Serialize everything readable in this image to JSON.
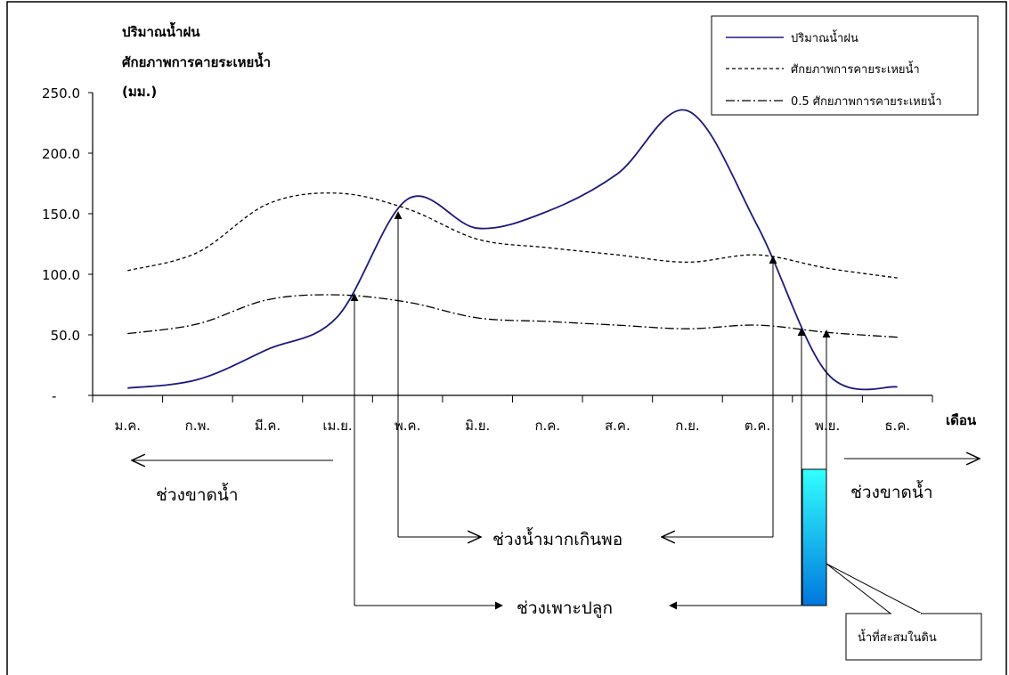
{
  "chart_data": {
    "type": "line",
    "ylabel_lines": [
      "ปริมาณน้ำฝน",
      "ศักยภาพการคายระเหยน้ำ",
      "(มม.)"
    ],
    "xlabel": "เดือน",
    "categories": [
      "ม.ค.",
      "ก.พ.",
      "มี.ค.",
      "เม.ย.",
      "พ.ค.",
      "มิ.ย.",
      "ก.ค.",
      "ส.ค.",
      "ก.ย.",
      "ต.ค.",
      "พ.ย.",
      "ธ.ค."
    ],
    "ylim": [
      0,
      250
    ],
    "yticks": [
      {
        "value": 0,
        "label": "-"
      },
      {
        "value": 50,
        "label": "50.0"
      },
      {
        "value": 100,
        "label": "100.0"
      },
      {
        "value": 150,
        "label": "150.0"
      },
      {
        "value": 200,
        "label": "200.0"
      },
      {
        "value": 250,
        "label": "250.0"
      }
    ],
    "series": [
      {
        "name": "ปริมาณน้ำฝน",
        "style": "solid",
        "color": "#1a1a80",
        "values": [
          6,
          13,
          38,
          65,
          162,
          138,
          152,
          183,
          235,
          140,
          18,
          7
        ]
      },
      {
        "name": "ศักยภาพการคายระเหยน้ำ",
        "style": "dashed",
        "color": "#000000",
        "values": [
          103,
          118,
          158,
          167,
          154,
          129,
          122,
          116,
          110,
          116,
          105,
          97
        ]
      },
      {
        "name": "0.5 ศักยภาพการคายระเหยน้ำ",
        "style": "dashdot",
        "color": "#000000",
        "values": [
          51,
          59,
          79,
          83,
          77,
          64,
          61,
          58,
          55,
          58,
          52,
          48
        ]
      }
    ],
    "legend_position": "top-right",
    "grid": false
  },
  "annotations": {
    "dry_period_label": "ช่วงขาดน้ำ",
    "surplus_period_label": "ช่วงน้ำมากเกินพอ",
    "growing_period_label": "ช่วงเพาะปลูก",
    "soil_storage_label": "น้ำที่สะสมในดิน"
  },
  "colors": {
    "rain_line": "#1a1a80",
    "soil_storage_top": "#33ffff",
    "soil_storage_bottom": "#0077dd"
  }
}
